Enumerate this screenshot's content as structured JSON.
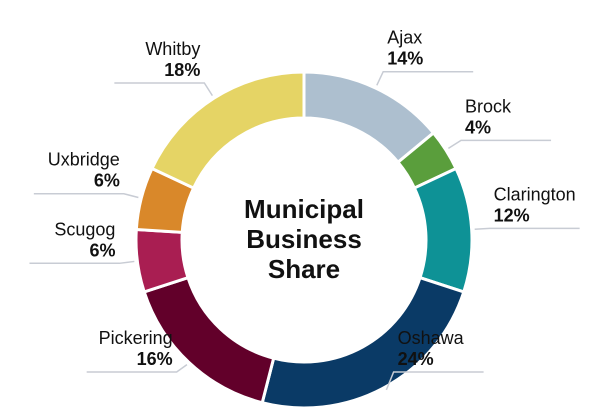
{
  "chart_data": {
    "type": "pie",
    "title": "Municipal Business Share",
    "categories": [
      "Ajax",
      "Brock",
      "Clarington",
      "Oshawa",
      "Pickering",
      "Scugog",
      "Uxbridge",
      "Whitby"
    ],
    "values": [
      14,
      4,
      12,
      24,
      16,
      6,
      6,
      18
    ],
    "value_labels": [
      "14%",
      "4%",
      "12%",
      "24%",
      "16%",
      "6%",
      "6%",
      "18%"
    ],
    "colors": [
      "#adbfcf",
      "#5a9e3c",
      "#0e9296",
      "#0a3a66",
      "#62002a",
      "#a91e52",
      "#d9882a",
      "#e5d465"
    ],
    "donut": true
  }
}
